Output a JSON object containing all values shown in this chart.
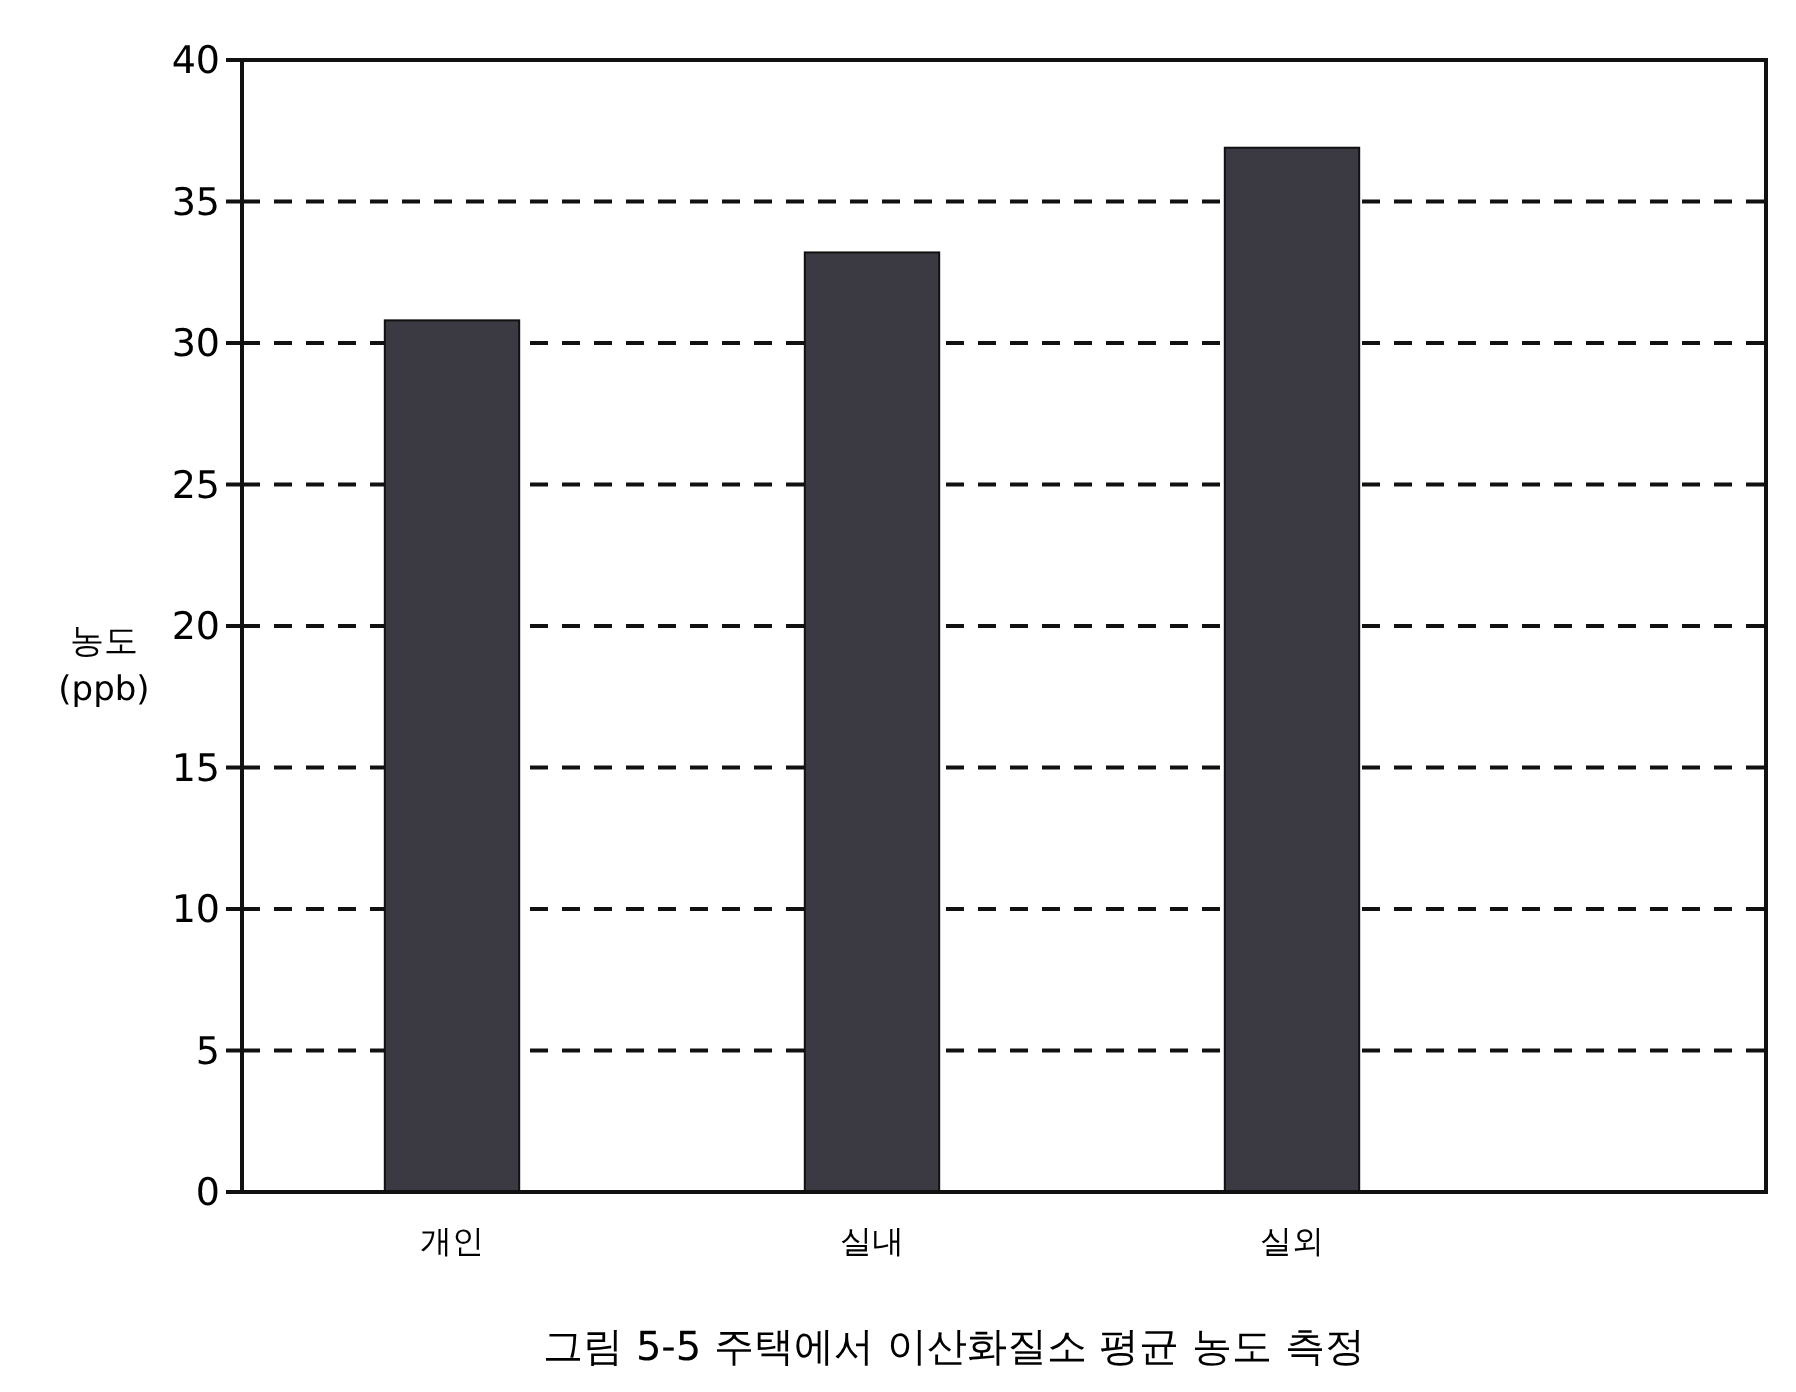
{
  "chart_data": {
    "type": "bar",
    "title": "그림 5-5 주택에서 이산화질소 평균 농도 측정",
    "ylabel": "농도 (ppb)",
    "categories": [
      "개인",
      "실내",
      "실외"
    ],
    "values": [
      30.8,
      33.2,
      36.9
    ],
    "color": "#3b3a42",
    "ylim": [
      0,
      40
    ],
    "yticks": [
      0,
      5,
      10,
      15,
      20,
      25,
      30,
      35,
      40
    ],
    "grid": "y",
    "line_style": "dashed"
  }
}
